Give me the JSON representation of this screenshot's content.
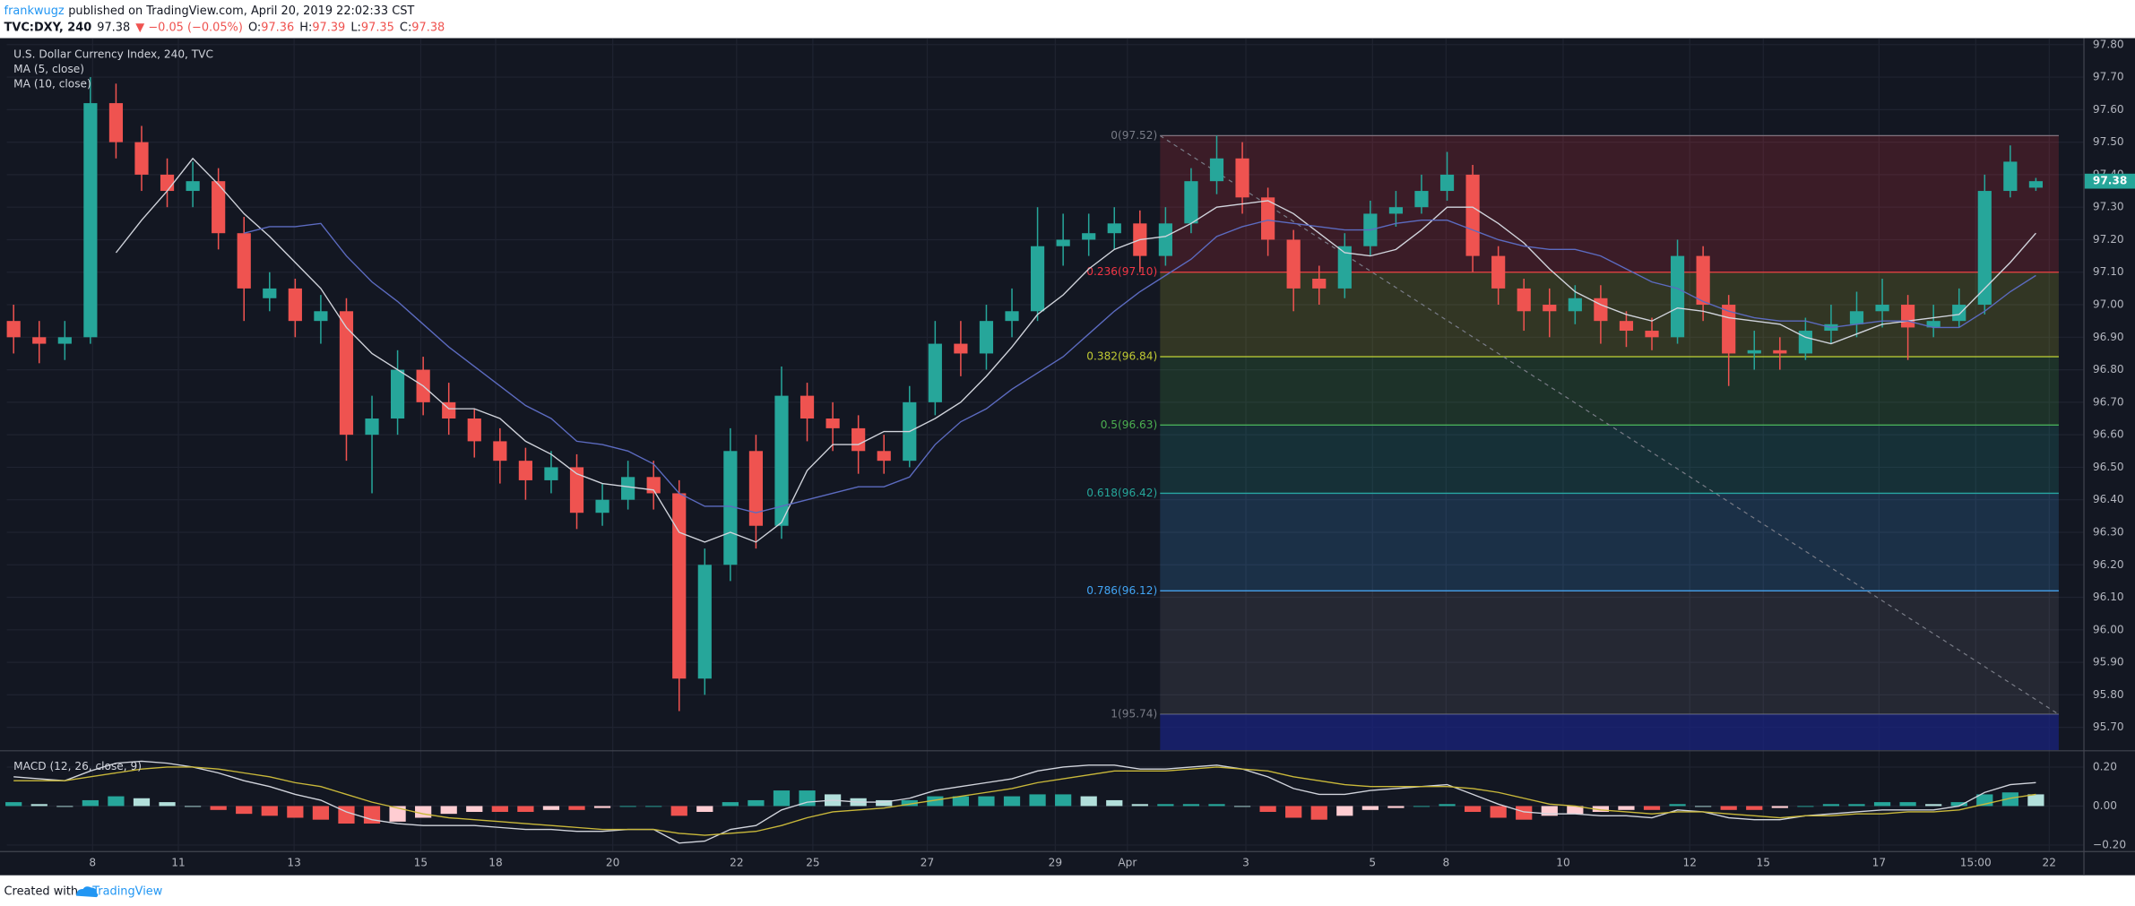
{
  "header": {
    "author": "frankwugz",
    "published": "published on TradingView.com, April 20, 2019 22:02:33 CST",
    "symbol": "TVC:DXY, 240",
    "last": "97.38",
    "change": "▼ −0.05 (−0.05%)",
    "ohlc": [
      {
        "label": "O:",
        "value": "97.36"
      },
      {
        "label": "H:",
        "value": "97.39"
      },
      {
        "label": "L:",
        "value": "97.35"
      },
      {
        "label": "C:",
        "value": "97.38"
      }
    ]
  },
  "footer": {
    "created": "Created with",
    "brand": "TradingView"
  },
  "chart_data": [
    {
      "type": "candlestick",
      "title": "U.S. Dollar Currency Index, 240, TVC",
      "up_color": "#26a69a",
      "down_color": "#ef5350",
      "open": [
        96.95,
        96.9,
        96.88,
        96.9,
        97.62,
        97.5,
        97.4,
        97.35,
        97.38,
        97.22,
        97.02,
        97.05,
        96.95,
        96.98,
        96.6,
        96.65,
        96.8,
        96.7,
        96.65,
        96.58,
        96.52,
        96.46,
        96.5,
        96.36,
        96.4,
        96.47,
        96.42,
        95.85,
        96.2,
        96.55,
        96.32,
        96.72,
        96.65,
        96.62,
        96.55,
        96.52,
        96.7,
        96.88,
        96.85,
        96.95,
        96.98,
        97.18,
        97.2,
        97.22,
        97.25,
        97.15,
        97.25,
        97.38,
        97.45,
        97.33,
        97.2,
        97.08,
        97.05,
        97.18,
        97.28,
        97.3,
        97.35,
        97.4,
        97.15,
        97.05,
        97.0,
        96.98,
        97.02,
        96.95,
        96.92,
        96.9,
        97.15,
        97.0,
        96.85,
        96.86,
        96.85,
        96.92,
        96.94,
        96.98,
        97.0,
        96.93,
        96.95,
        97.0,
        97.35,
        97.36
      ],
      "high": [
        97.0,
        96.95,
        96.95,
        97.7,
        97.68,
        97.55,
        97.45,
        97.44,
        97.42,
        97.27,
        97.1,
        97.08,
        97.03,
        97.02,
        96.72,
        96.86,
        96.84,
        96.76,
        96.68,
        96.62,
        96.56,
        96.55,
        96.54,
        96.45,
        96.52,
        96.52,
        96.46,
        96.25,
        96.62,
        96.6,
        96.81,
        96.76,
        96.7,
        96.66,
        96.6,
        96.75,
        96.95,
        96.95,
        97.0,
        97.05,
        97.3,
        97.28,
        97.28,
        97.3,
        97.29,
        97.3,
        97.42,
        97.52,
        97.5,
        97.36,
        97.23,
        97.12,
        97.22,
        97.32,
        97.35,
        97.4,
        97.47,
        97.43,
        97.18,
        97.08,
        97.05,
        97.06,
        97.06,
        96.98,
        96.96,
        97.2,
        97.18,
        97.03,
        96.92,
        96.9,
        96.96,
        97.0,
        97.04,
        97.08,
        97.03,
        97.0,
        97.05,
        97.4,
        97.49,
        97.39
      ],
      "low": [
        96.85,
        96.82,
        96.83,
        96.88,
        97.45,
        97.35,
        97.3,
        97.3,
        97.17,
        96.95,
        96.98,
        96.9,
        96.88,
        96.52,
        96.42,
        96.6,
        96.66,
        96.6,
        96.53,
        96.45,
        96.4,
        96.42,
        96.31,
        96.32,
        96.37,
        96.37,
        95.75,
        95.8,
        96.15,
        96.25,
        96.28,
        96.58,
        96.55,
        96.48,
        96.48,
        96.5,
        96.66,
        96.78,
        96.8,
        96.9,
        96.95,
        97.12,
        97.15,
        97.17,
        97.1,
        97.12,
        97.22,
        97.34,
        97.28,
        97.15,
        96.98,
        97.0,
        97.02,
        97.15,
        97.24,
        97.28,
        97.32,
        97.1,
        97.0,
        96.92,
        96.9,
        96.94,
        96.88,
        96.87,
        96.86,
        96.88,
        96.95,
        96.75,
        96.8,
        96.8,
        96.83,
        96.88,
        96.9,
        96.93,
        96.83,
        96.9,
        96.93,
        96.97,
        97.33,
        97.35
      ],
      "close": [
        96.9,
        96.88,
        96.9,
        97.62,
        97.5,
        97.4,
        97.35,
        97.38,
        97.22,
        97.05,
        97.05,
        96.95,
        96.98,
        96.6,
        96.65,
        96.8,
        96.7,
        96.65,
        96.58,
        96.52,
        96.46,
        96.5,
        96.36,
        96.4,
        96.47,
        96.42,
        95.85,
        96.2,
        96.55,
        96.32,
        96.72,
        96.65,
        96.62,
        96.55,
        96.52,
        96.7,
        96.88,
        96.85,
        96.95,
        96.98,
        97.18,
        97.2,
        97.22,
        97.25,
        97.15,
        97.25,
        97.38,
        97.45,
        97.33,
        97.2,
        97.05,
        97.05,
        97.18,
        97.28,
        97.3,
        97.35,
        97.4,
        97.15,
        97.05,
        96.98,
        96.98,
        97.02,
        96.95,
        96.92,
        96.9,
        97.15,
        97.0,
        96.85,
        96.86,
        96.85,
        96.92,
        96.94,
        96.98,
        97.0,
        96.93,
        96.95,
        97.0,
        97.35,
        97.44,
        97.38
      ],
      "series": [
        {
          "name": "MA (5, close)",
          "color": "#d1d4dc",
          "values": [
            null,
            null,
            null,
            null,
            97.16,
            97.26,
            97.35,
            97.45,
            97.37,
            97.28,
            97.21,
            97.13,
            97.05,
            96.93,
            96.85,
            96.8,
            96.75,
            96.68,
            96.68,
            96.65,
            96.58,
            96.54,
            96.48,
            96.45,
            96.44,
            96.43,
            96.3,
            96.27,
            96.3,
            96.27,
            96.33,
            96.49,
            96.57,
            96.57,
            96.61,
            96.61,
            96.65,
            96.7,
            96.78,
            96.87,
            96.97,
            97.03,
            97.11,
            97.17,
            97.2,
            97.21,
            97.25,
            97.3,
            97.31,
            97.32,
            97.28,
            97.22,
            97.16,
            97.15,
            97.17,
            97.23,
            97.3,
            97.3,
            97.25,
            97.19,
            97.11,
            97.04,
            97.0,
            96.97,
            96.95,
            96.99,
            96.98,
            96.96,
            96.95,
            96.94,
            96.9,
            96.88,
            96.91,
            96.94,
            96.95,
            96.96,
            96.97,
            97.05,
            97.13,
            97.22
          ]
        },
        {
          "name": "MA (10, close)",
          "color": "#5c6bc0",
          "values": [
            null,
            null,
            null,
            null,
            null,
            null,
            null,
            null,
            null,
            97.22,
            97.24,
            97.24,
            97.25,
            97.15,
            97.07,
            97.01,
            96.94,
            96.87,
            96.81,
            96.75,
            96.69,
            96.65,
            96.58,
            96.57,
            96.55,
            96.51,
            96.42,
            96.38,
            96.38,
            96.36,
            96.38,
            96.4,
            96.42,
            96.44,
            96.44,
            96.47,
            96.57,
            96.64,
            96.68,
            96.74,
            96.79,
            96.84,
            96.91,
            96.98,
            97.04,
            97.09,
            97.14,
            97.21,
            97.24,
            97.26,
            97.25,
            97.24,
            97.23,
            97.23,
            97.25,
            97.26,
            97.26,
            97.23,
            97.2,
            97.18,
            97.17,
            97.17,
            97.15,
            97.11,
            97.07,
            97.05,
            97.01,
            96.98,
            96.96,
            96.95,
            96.95,
            96.93,
            96.94,
            96.95,
            96.95,
            96.93,
            96.93,
            96.98,
            97.04,
            97.09
          ]
        }
      ],
      "ylim": [
        95.63,
        97.82
      ],
      "yticks": [
        {
          "value": 95.7,
          "label": "95.70"
        },
        {
          "value": 95.8,
          "label": "95.80"
        },
        {
          "value": 95.9,
          "label": "95.90"
        },
        {
          "value": 96.0,
          "label": "96.00"
        },
        {
          "value": 96.1,
          "label": "96.10"
        },
        {
          "value": 96.2,
          "label": "96.20"
        },
        {
          "value": 96.3,
          "label": "96.30"
        },
        {
          "value": 96.4,
          "label": "96.40"
        },
        {
          "value": 96.5,
          "label": "96.50"
        },
        {
          "value": 96.6,
          "label": "96.60"
        },
        {
          "value": 96.7,
          "label": "96.70"
        },
        {
          "value": 96.8,
          "label": "96.80"
        },
        {
          "value": 96.9,
          "label": "96.90"
        },
        {
          "value": 97.0,
          "label": "97.00"
        },
        {
          "value": 97.1,
          "label": "97.10"
        },
        {
          "value": 97.2,
          "label": "97.20"
        },
        {
          "value": 97.3,
          "label": "97.30"
        },
        {
          "value": 97.4,
          "label": "97.40"
        },
        {
          "value": 97.5,
          "label": "97.50"
        },
        {
          "value": 97.6,
          "label": "97.60"
        },
        {
          "value": 97.7,
          "label": "97.70"
        },
        {
          "value": 97.8,
          "label": "97.80"
        }
      ],
      "grid": true,
      "fib_levels": [
        {
          "value": 97.52,
          "label": "0(97.52)",
          "color": "#787b86"
        },
        {
          "value": 97.1,
          "label": "0.236(97.10)",
          "color": "#f23645"
        },
        {
          "value": 96.84,
          "label": "0.382(96.84)",
          "color": "#c0ca33"
        },
        {
          "value": 96.63,
          "label": "0.5(96.63)",
          "color": "#4caf50"
        },
        {
          "value": 96.42,
          "label": "0.618(96.42)",
          "color": "#26a69a"
        },
        {
          "value": 96.12,
          "label": "0.786(96.12)",
          "color": "#42a5f5"
        },
        {
          "value": 95.74,
          "label": "1(95.74)",
          "color": "#787b86"
        }
      ]
    },
    {
      "type": "macd",
      "title": "MACD (12, 26, close, 9)",
      "histogram": [
        0.02,
        0.01,
        0.0,
        0.03,
        0.05,
        0.04,
        0.02,
        0.0,
        -0.02,
        -0.04,
        -0.05,
        -0.06,
        -0.07,
        -0.09,
        -0.09,
        -0.08,
        -0.06,
        -0.04,
        -0.03,
        -0.03,
        -0.03,
        -0.02,
        -0.02,
        -0.01,
        0.0,
        0.0,
        -0.05,
        -0.03,
        0.02,
        0.03,
        0.08,
        0.08,
        0.06,
        0.04,
        0.03,
        0.03,
        0.05,
        0.05,
        0.05,
        0.05,
        0.06,
        0.06,
        0.05,
        0.03,
        0.01,
        0.01,
        0.01,
        0.01,
        0.0,
        -0.03,
        -0.06,
        -0.07,
        -0.05,
        -0.02,
        -0.01,
        0.0,
        0.01,
        -0.03,
        -0.06,
        -0.07,
        -0.05,
        -0.04,
        -0.03,
        -0.02,
        -0.02,
        0.01,
        0.0,
        -0.02,
        -0.02,
        -0.01,
        0.0,
        0.01,
        0.01,
        0.02,
        0.02,
        0.01,
        0.02,
        0.06,
        0.07,
        0.06
      ],
      "hist_colors": [
        "#26a69a",
        "#b2dfdb",
        "#ef5350",
        "#ffcdd2"
      ],
      "series": [
        {
          "color": "#d1d4dc",
          "values": [
            0.15,
            0.14,
            0.13,
            0.18,
            0.22,
            0.23,
            0.22,
            0.2,
            0.17,
            0.13,
            0.1,
            0.06,
            0.03,
            -0.03,
            -0.07,
            -0.09,
            -0.1,
            -0.1,
            -0.1,
            -0.11,
            -0.12,
            -0.12,
            -0.13,
            -0.13,
            -0.12,
            -0.12,
            -0.19,
            -0.18,
            -0.12,
            -0.1,
            -0.02,
            0.02,
            0.03,
            0.02,
            0.02,
            0.04,
            0.08,
            0.1,
            0.12,
            0.14,
            0.18,
            0.2,
            0.21,
            0.21,
            0.19,
            0.19,
            0.2,
            0.21,
            0.19,
            0.15,
            0.09,
            0.06,
            0.06,
            0.08,
            0.09,
            0.1,
            0.11,
            0.06,
            0.01,
            -0.03,
            -0.04,
            -0.04,
            -0.05,
            -0.05,
            -0.06,
            -0.02,
            -0.03,
            -0.06,
            -0.07,
            -0.07,
            -0.05,
            -0.04,
            -0.03,
            -0.02,
            -0.02,
            -0.02,
            0.0,
            0.07,
            0.11,
            0.12
          ]
        },
        {
          "color": "#c9b83a",
          "values": [
            0.13,
            0.13,
            0.13,
            0.15,
            0.17,
            0.19,
            0.2,
            0.2,
            0.19,
            0.17,
            0.15,
            0.12,
            0.1,
            0.06,
            0.02,
            -0.01,
            -0.04,
            -0.06,
            -0.07,
            -0.08,
            -0.09,
            -0.1,
            -0.11,
            -0.12,
            -0.12,
            -0.12,
            -0.14,
            -0.15,
            -0.14,
            -0.13,
            -0.1,
            -0.06,
            -0.03,
            -0.02,
            -0.01,
            0.01,
            0.03,
            0.05,
            0.07,
            0.09,
            0.12,
            0.14,
            0.16,
            0.18,
            0.18,
            0.18,
            0.19,
            0.2,
            0.19,
            0.18,
            0.15,
            0.13,
            0.11,
            0.1,
            0.1,
            0.1,
            0.1,
            0.09,
            0.07,
            0.04,
            0.01,
            0.0,
            -0.02,
            -0.03,
            -0.04,
            -0.03,
            -0.03,
            -0.04,
            -0.05,
            -0.06,
            -0.05,
            -0.05,
            -0.04,
            -0.04,
            -0.03,
            -0.03,
            -0.02,
            0.01,
            0.04,
            0.06
          ]
        }
      ],
      "ylim": [
        -0.23,
        0.28
      ],
      "yticks": [
        {
          "value": -0.2,
          "label": "−0.20"
        },
        {
          "value": 0,
          "label": "0.00"
        },
        {
          "value": 0.2,
          "label": "0.20"
        }
      ],
      "grid": true,
      "xticks": [
        "8",
        "11",
        "13",
        "15",
        "18",
        "20",
        "22",
        "25",
        "27",
        "29",
        "Apr",
        "3",
        "5",
        "8",
        "10",
        "12",
        "15",
        "17",
        "15:00",
        "22"
      ]
    }
  ]
}
